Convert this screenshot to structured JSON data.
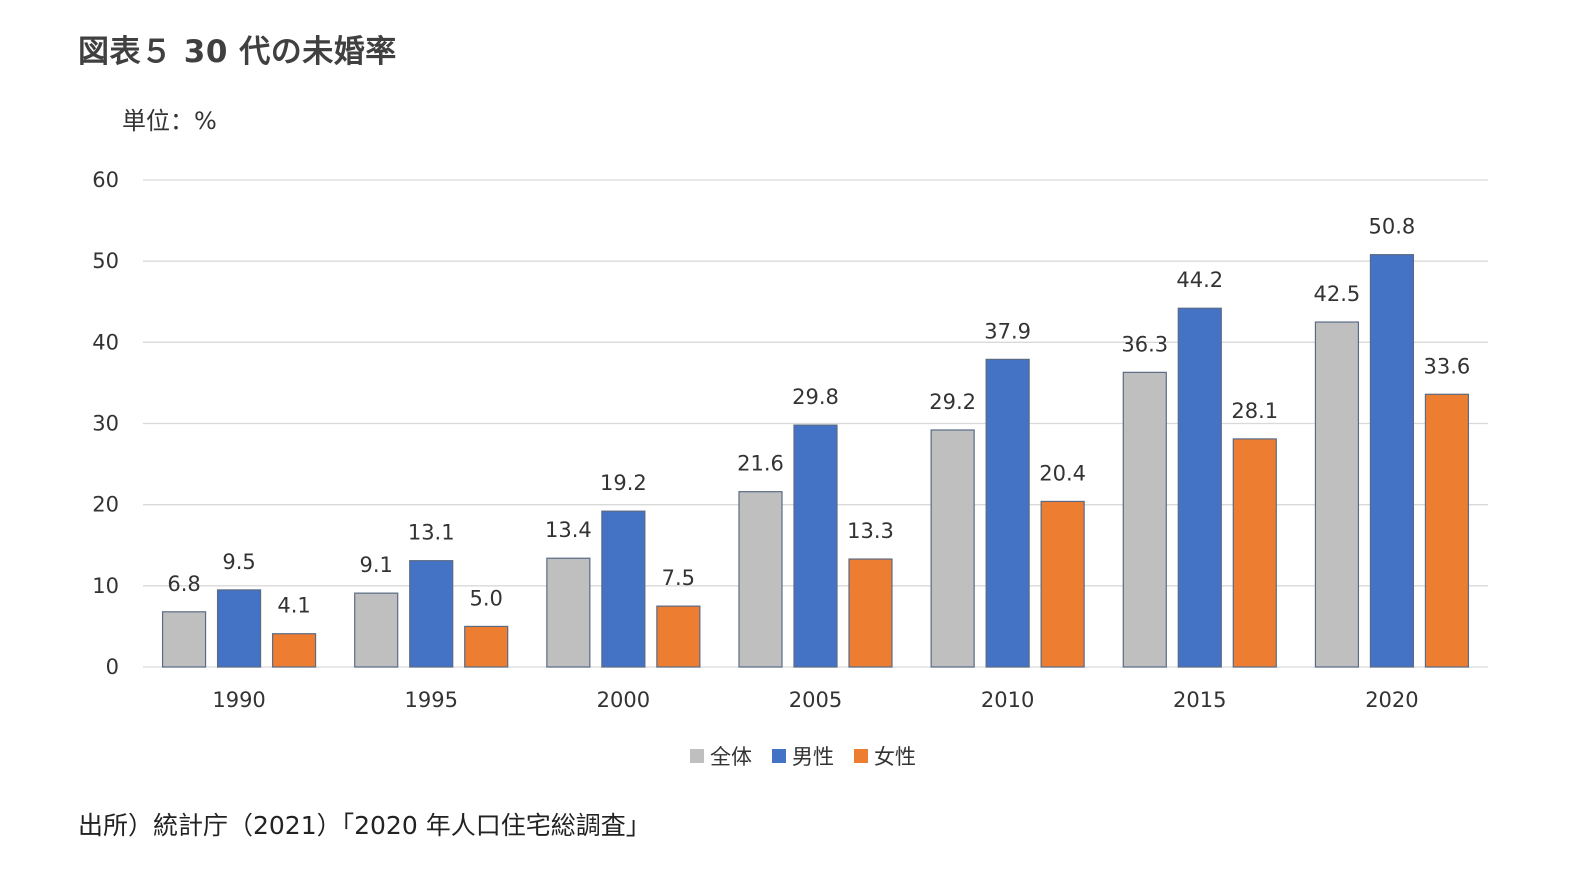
{
  "title": "図表５ 30 代の未婚率",
  "unit_label": "単位：%",
  "source": "出所）統計庁（2021）「2020 年人口住宅総調査」",
  "chart_data": {
    "type": "bar",
    "categories": [
      "1990",
      "1995",
      "2000",
      "2005",
      "2010",
      "2015",
      "2020"
    ],
    "series": [
      {
        "name": "全体",
        "color": "#BFBFBF",
        "values": [
          6.8,
          9.1,
          13.4,
          21.6,
          29.2,
          36.3,
          42.5
        ]
      },
      {
        "name": "男性",
        "color": "#4472C4",
        "values": [
          9.5,
          13.1,
          19.2,
          29.8,
          37.9,
          44.2,
          50.8
        ]
      },
      {
        "name": "女性",
        "color": "#ED7D31",
        "values": [
          4.1,
          5.0,
          7.5,
          13.3,
          20.4,
          28.1,
          33.6
        ]
      }
    ],
    "ylim": [
      0,
      60
    ],
    "yticks": [
      0,
      10,
      20,
      30,
      40,
      50,
      60
    ],
    "grid": true,
    "legend_position": "bottom-center",
    "data_label_decimals": 1
  }
}
